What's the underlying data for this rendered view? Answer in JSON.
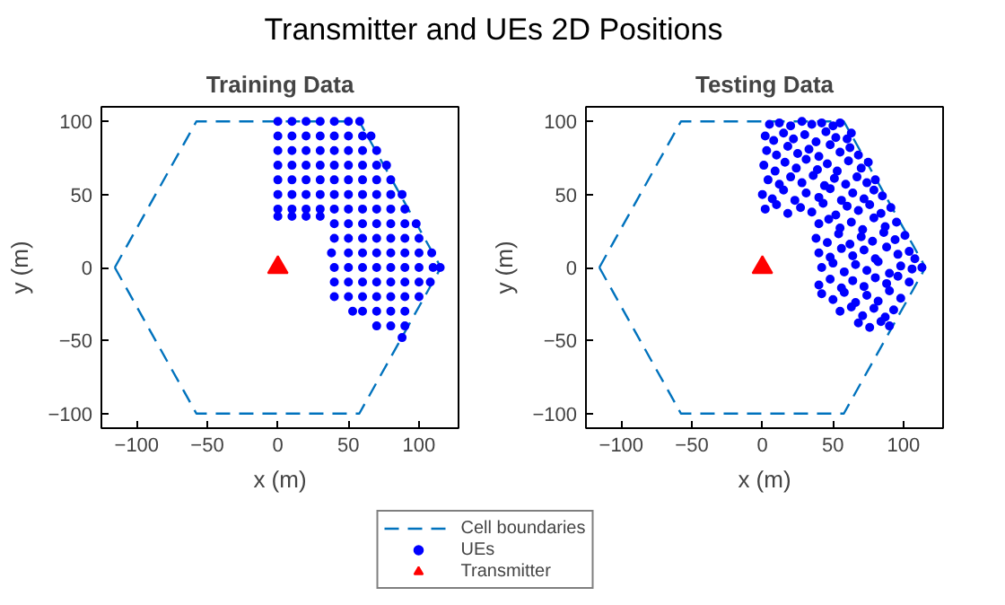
{
  "chart_data": [
    {
      "type": "scatter",
      "title": "Training Data",
      "xlabel": "x (m)",
      "ylabel": "y (m)",
      "xlim": [
        -125,
        128
      ],
      "ylim": [
        -110,
        110
      ],
      "xticks": [
        -100,
        -50,
        0,
        50,
        100
      ],
      "yticks": [
        -100,
        -50,
        0,
        50,
        100
      ],
      "legend": "bottom",
      "annotations": [
        "Transmitter and UEs 2D Positions"
      ],
      "series": [
        {
          "name": "Cell boundaries",
          "type": "line",
          "line_style": "dashed",
          "marker": "none",
          "color": "#0072bd",
          "x": [
            -115.5,
            -57.7,
            57.7,
            115.5
          ],
          "values": [
            0,
            100,
            100,
            0
          ]
        },
        {
          "type": "line",
          "line_style": "dashed",
          "marker": "none",
          "color": "#0072bd",
          "x": [
            -115.5,
            -57.7,
            57.7,
            115.5
          ],
          "values": [
            0,
            -100,
            -100,
            0
          ]
        },
        {
          "name": "UEs",
          "marker": "circle",
          "color": "#0000ff",
          "x": [
            0,
            10,
            20,
            30,
            40,
            50,
            58,
            0,
            10,
            20,
            30,
            40,
            50,
            60,
            66,
            0,
            10,
            20,
            30,
            40,
            50,
            60,
            70,
            0,
            10,
            20,
            30,
            40,
            50,
            60,
            70,
            77,
            0,
            10,
            20,
            30,
            40,
            50,
            60,
            70,
            80,
            0,
            10,
            20,
            30,
            40,
            50,
            60,
            70,
            80,
            88,
            0,
            10,
            20,
            30,
            40,
            50,
            60,
            70,
            80,
            90,
            0,
            10,
            20,
            30,
            40,
            50,
            60,
            70,
            80,
            90,
            98,
            40,
            50,
            60,
            70,
            80,
            90,
            100,
            38,
            50,
            60,
            70,
            80,
            90,
            100,
            109,
            40,
            50,
            60,
            70,
            80,
            90,
            100,
            110,
            115,
            40,
            50,
            60,
            70,
            80,
            90,
            100,
            108,
            40,
            50,
            60,
            70,
            80,
            90,
            100,
            53,
            60,
            70,
            80,
            90,
            70,
            80,
            90,
            88
          ],
          "values": [
            100,
            100,
            100,
            100,
            100,
            100,
            100,
            90,
            90,
            90,
            90,
            90,
            90,
            90,
            90,
            80,
            80,
            80,
            80,
            80,
            80,
            80,
            80,
            70,
            70,
            70,
            70,
            70,
            70,
            70,
            70,
            70,
            60,
            60,
            60,
            60,
            60,
            60,
            60,
            60,
            60,
            50,
            50,
            50,
            50,
            50,
            50,
            50,
            50,
            50,
            50,
            40,
            40,
            40,
            40,
            40,
            40,
            40,
            40,
            40,
            40,
            35,
            35,
            35,
            35,
            30,
            30,
            30,
            30,
            30,
            30,
            30,
            20,
            20,
            20,
            20,
            20,
            20,
            20,
            10,
            10,
            10,
            10,
            10,
            10,
            10,
            10,
            0,
            0,
            0,
            0,
            0,
            0,
            0,
            0,
            0,
            -10,
            -10,
            -10,
            -10,
            -10,
            -10,
            -10,
            -10,
            -20,
            -20,
            -20,
            -20,
            -20,
            -20,
            -20,
            -30,
            -30,
            -30,
            -30,
            -30,
            -40,
            -40,
            -40,
            -48
          ]
        },
        {
          "name": "Transmitter",
          "marker": "triangle",
          "color": "#ff0000",
          "x": [
            0
          ],
          "values": [
            0
          ]
        }
      ]
    },
    {
      "type": "scatter",
      "title": "Testing Data",
      "xlabel": "x (m)",
      "ylabel": "y (m)",
      "xlim": [
        -125,
        128
      ],
      "ylim": [
        -110,
        110
      ],
      "xticks": [
        -100,
        -50,
        0,
        50,
        100
      ],
      "yticks": [
        -100,
        -50,
        0,
        50,
        100
      ],
      "series": [
        {
          "type": "line",
          "line_style": "dashed",
          "marker": "none",
          "color": "#0072bd",
          "x": [
            -115.5,
            -57.7,
            57.7,
            115.5
          ],
          "values": [
            0,
            100,
            100,
            0
          ]
        },
        {
          "type": "line",
          "line_style": "dashed",
          "marker": "none",
          "color": "#0072bd",
          "x": [
            -115.5,
            -57.7,
            57.7,
            115.5
          ],
          "values": [
            0,
            -100,
            -100,
            0
          ]
        },
        {
          "marker": "circle",
          "color": "#0000ff",
          "x": [
            5,
            12,
            20,
            28,
            35,
            42,
            50,
            55,
            2,
            8,
            15,
            22,
            30,
            38,
            45,
            52,
            60,
            63,
            3,
            10,
            18,
            25,
            33,
            40,
            48,
            55,
            62,
            68,
            1,
            9,
            16,
            24,
            31,
            39,
            46,
            53,
            61,
            70,
            75,
            4,
            12,
            20,
            28,
            36,
            44,
            51,
            59,
            67,
            74,
            80,
            0,
            7,
            15,
            23,
            31,
            40,
            48,
            56,
            64,
            72,
            79,
            85,
            2,
            10,
            18,
            27,
            35,
            43,
            52,
            60,
            68,
            76,
            84,
            91,
            40,
            47,
            55,
            63,
            71,
            79,
            87,
            95,
            38,
            46,
            54,
            62,
            70,
            78,
            86,
            94,
            101,
            40,
            48,
            56,
            64,
            72,
            80,
            88,
            96,
            104,
            108,
            42,
            50,
            58,
            66,
            74,
            82,
            90,
            98,
            106,
            113,
            40,
            48,
            56,
            64,
            72,
            80,
            88,
            96,
            104,
            42,
            50,
            58,
            66,
            74,
            82,
            90,
            98,
            55,
            63,
            71,
            79,
            87,
            93,
            68,
            76,
            84,
            90
          ],
          "values": [
            98,
            99,
            97,
            100,
            98,
            99,
            97,
            99,
            90,
            87,
            92,
            88,
            91,
            86,
            93,
            89,
            88,
            92,
            80,
            77,
            83,
            78,
            81,
            76,
            84,
            79,
            82,
            77,
            70,
            66,
            72,
            68,
            74,
            67,
            71,
            66,
            73,
            68,
            72,
            60,
            57,
            62,
            58,
            63,
            56,
            61,
            57,
            62,
            58,
            60,
            50,
            47,
            53,
            46,
            51,
            48,
            54,
            46,
            51,
            47,
            53,
            49,
            40,
            43,
            37,
            41,
            38,
            44,
            36,
            42,
            39,
            43,
            37,
            41,
            30,
            33,
            27,
            31,
            26,
            34,
            28,
            31,
            20,
            17,
            23,
            16,
            21,
            18,
            24,
            19,
            22,
            10,
            7,
            13,
            8,
            12,
            6,
            14,
            9,
            11,
            6,
            0,
            3,
            -3,
            2,
            -2,
            4,
            -4,
            1,
            -1,
            0,
            -12,
            -8,
            -14,
            -9,
            -13,
            -7,
            -11,
            -6,
            -10,
            -18,
            -22,
            -17,
            -24,
            -19,
            -23,
            -16,
            -21,
            -30,
            -27,
            -33,
            -28,
            -34,
            -29,
            -38,
            -41,
            -37,
            -40
          ]
        },
        {
          "marker": "triangle",
          "color": "#ff0000",
          "x": [
            0
          ],
          "values": [
            0
          ]
        }
      ]
    }
  ]
}
